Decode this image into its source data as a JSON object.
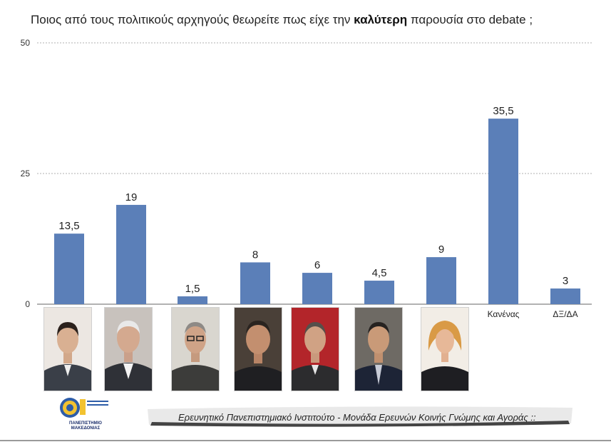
{
  "title": {
    "prefix": "Ποιος από τους πολιτικούς αρχηγούς θεωρείτε πως είχε την ",
    "bold": "καλύτερη",
    "suffix": " παρουσία στο debate ;"
  },
  "chart_data": {
    "type": "bar",
    "title": "Ποιος από τους πολιτικούς αρχηγούς θεωρείτε πως είχε την καλύτερη παρουσία στο debate ;",
    "categories": [
      "Photo 1",
      "Photo 2",
      "Photo 3",
      "Photo 4",
      "Photo 5",
      "Photo 6",
      "Photo 7",
      "Κανένας",
      "ΔΞ/ΔΑ"
    ],
    "category_display": [
      "",
      "",
      "",
      "",
      "",
      "",
      "",
      "Κανένας",
      "ΔΞ/ΔΑ"
    ],
    "values": [
      13.5,
      19,
      1.5,
      8,
      6,
      4.5,
      9,
      35.5,
      3
    ],
    "value_labels": [
      "13,5",
      "19",
      "1,5",
      "8",
      "6",
      "4,5",
      "9",
      "35,5",
      "3"
    ],
    "ylim": [
      0,
      50
    ],
    "yticks": [
      0,
      25,
      50
    ],
    "ytick_labels": [
      "0",
      "25",
      "50"
    ],
    "gridlines": true,
    "xlabel": "",
    "ylabel": "",
    "bar_color": "#5b7fb8"
  },
  "footer": {
    "text": "Ερευνητικό Πανεπιστημιακό Ινστιτούτο - Μονάδα Ερευνών Κοινής Γνώμης και Αγοράς ::"
  },
  "logo": {
    "line1": "ΠΑΝΕΠΙΣΤΗΜΙΟ",
    "line2": "ΜΑΚΕΔΟΝΙΑΣ"
  }
}
